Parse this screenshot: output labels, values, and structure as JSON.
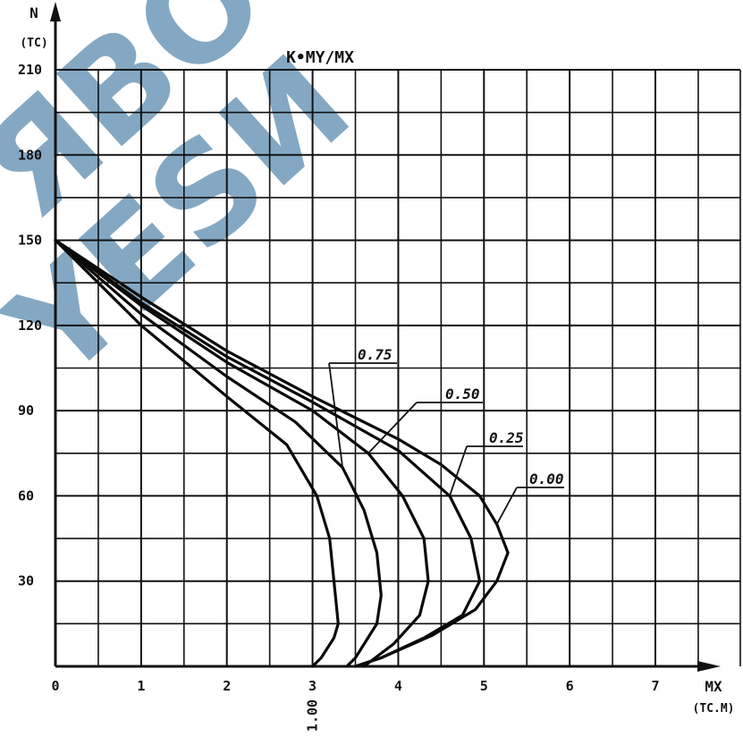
{
  "chart_data": {
    "type": "line",
    "title": "K•MY/MX",
    "xlabel": "MX",
    "xunit": "(TC.M)",
    "ylabel": "N",
    "yunit": "(TC)",
    "xlim": [
      0,
      7
    ],
    "ylim": [
      0,
      210
    ],
    "x_ticks": [
      "0",
      "1",
      "2",
      "3",
      "4",
      "5",
      "6",
      "7"
    ],
    "y_ticks": [
      "30",
      "60",
      "90",
      "120",
      "150",
      "180",
      "210"
    ],
    "extra_label": "1.00",
    "grid": true,
    "series": [
      {
        "name": "1.00",
        "points": [
          [
            0,
            150
          ],
          [
            1,
            120
          ],
          [
            2,
            95
          ],
          [
            2.7,
            78
          ],
          [
            3.05,
            60
          ],
          [
            3.2,
            45
          ],
          [
            3.25,
            30
          ],
          [
            3.3,
            15
          ],
          [
            3.25,
            10
          ],
          [
            3.1,
            3
          ],
          [
            3.0,
            0
          ]
        ]
      },
      {
        "name": "0.75",
        "points": [
          [
            0,
            150
          ],
          [
            1,
            124
          ],
          [
            2,
            102
          ],
          [
            2.8,
            86
          ],
          [
            3.35,
            70
          ],
          [
            3.6,
            55
          ],
          [
            3.75,
            40
          ],
          [
            3.8,
            25
          ],
          [
            3.75,
            15
          ],
          [
            3.5,
            3
          ],
          [
            3.4,
            0
          ]
        ]
      },
      {
        "name": "0.50",
        "points": [
          [
            0,
            150
          ],
          [
            1,
            127
          ],
          [
            2,
            107
          ],
          [
            3,
            90
          ],
          [
            3.65,
            75
          ],
          [
            4.05,
            60
          ],
          [
            4.3,
            45
          ],
          [
            4.35,
            30
          ],
          [
            4.25,
            18
          ],
          [
            3.95,
            8
          ],
          [
            3.6,
            0
          ]
        ]
      },
      {
        "name": "0.25",
        "points": [
          [
            0,
            150
          ],
          [
            1,
            128
          ],
          [
            2,
            109
          ],
          [
            3,
            93
          ],
          [
            4,
            76
          ],
          [
            4.6,
            60
          ],
          [
            4.85,
            45
          ],
          [
            4.95,
            30
          ],
          [
            4.75,
            18
          ],
          [
            4.3,
            10
          ],
          [
            3.8,
            3
          ],
          [
            3.5,
            0
          ]
        ]
      },
      {
        "name": "0.00",
        "points": [
          [
            0,
            150
          ],
          [
            1,
            130
          ],
          [
            2,
            111
          ],
          [
            3,
            95
          ],
          [
            4,
            80
          ],
          [
            4.5,
            71
          ],
          [
            4.95,
            60
          ],
          [
            5.15,
            50
          ],
          [
            5.28,
            40
          ],
          [
            5.15,
            30
          ],
          [
            4.9,
            20
          ],
          [
            4.4,
            11
          ],
          [
            3.8,
            3
          ],
          [
            3.5,
            0
          ]
        ]
      }
    ],
    "curve_labels": [
      "0.75",
      "0.50",
      "0.25",
      "0.00"
    ],
    "watermark": "ЯBO YESИ"
  }
}
